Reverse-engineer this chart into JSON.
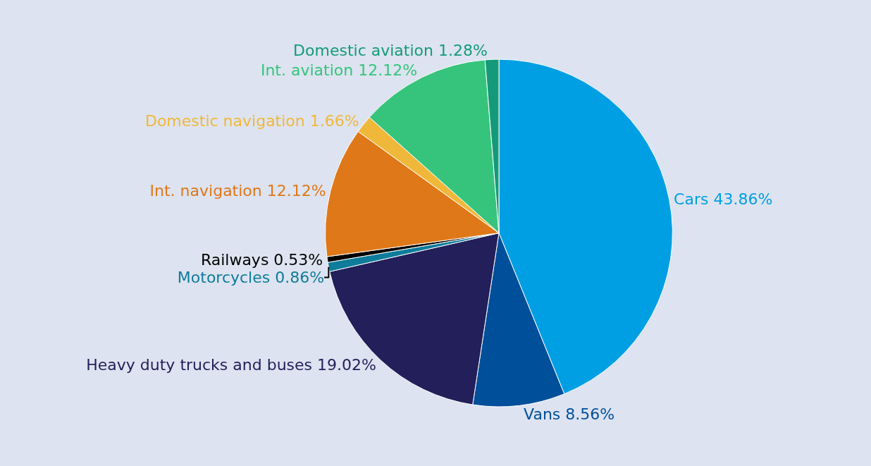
{
  "chart_data": {
    "type": "pie",
    "categories": [
      "Cars",
      "Vans",
      "Heavy duty trucks and buses",
      "Motorcycles",
      "Railways",
      "Int. navigation",
      "Domestic navigation",
      "Int. aviation",
      "Domestic aviation"
    ],
    "values": [
      43.86,
      8.56,
      19.02,
      0.86,
      0.53,
      12.12,
      1.66,
      12.12,
      1.28
    ],
    "value_labels": [
      "43.86%",
      "8.56%",
      "19.02%",
      "0.86%",
      "0.53%",
      "12.12%",
      "1.66%",
      "12.12%",
      "1.28%"
    ],
    "colors": [
      "#009fe3",
      "#004f9a",
      "#221f5a",
      "#0e7c9a",
      "#000000",
      "#df7818",
      "#f0b83a",
      "#36c47c",
      "#149a7a"
    ],
    "legend": false
  }
}
